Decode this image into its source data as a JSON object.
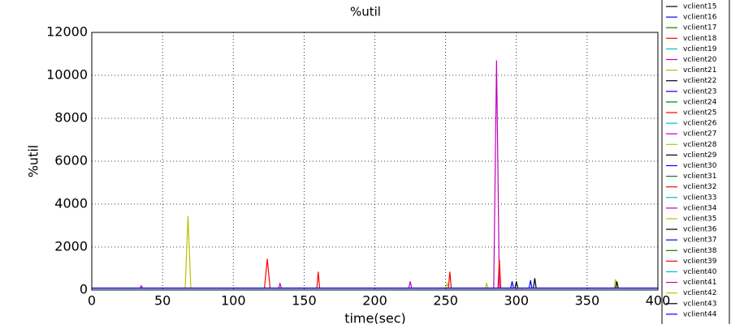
{
  "chart_data": {
    "type": "line",
    "title": "%util",
    "xlabel": "time(sec)",
    "ylabel": "%util",
    "xlim": [
      0,
      400
    ],
    "ylim": [
      0,
      12000
    ],
    "xticks": [
      0,
      50,
      100,
      150,
      200,
      250,
      300,
      350,
      400
    ],
    "yticks": [
      0,
      2000,
      4000,
      6000,
      8000,
      10000,
      12000
    ],
    "grid": true,
    "legend": "right",
    "series": [
      {
        "name": "vclient15",
        "color": "#000000",
        "x": [
          0,
          400
        ],
        "values": [
          80,
          80
        ]
      },
      {
        "name": "vclient16",
        "color": "#0000ff",
        "x": [
          0,
          400
        ],
        "values": [
          80,
          80
        ]
      },
      {
        "name": "vclient17",
        "color": "#008000",
        "x": [
          0,
          400
        ],
        "values": [
          80,
          80
        ]
      },
      {
        "name": "vclient18",
        "color": "#ff0000",
        "x": [
          0,
          122,
          124,
          126,
          400
        ],
        "values": [
          80,
          80,
          1450,
          80,
          80
        ]
      },
      {
        "name": "vclient19",
        "color": "#00bfbf",
        "x": [
          0,
          400
        ],
        "values": [
          80,
          80
        ]
      },
      {
        "name": "vclient20",
        "color": "#bf00bf",
        "x": [
          0,
          284,
          286,
          288,
          400
        ],
        "values": [
          80,
          80,
          10700,
          80,
          80
        ]
      },
      {
        "name": "vclient21",
        "color": "#bfbf00",
        "x": [
          0,
          66,
          68,
          70,
          400
        ],
        "values": [
          80,
          80,
          3450,
          80,
          80
        ]
      },
      {
        "name": "vclient22",
        "color": "#000000",
        "x": [
          0,
          312,
          313,
          314,
          400
        ],
        "values": [
          80,
          80,
          550,
          80,
          80
        ]
      },
      {
        "name": "vclient23",
        "color": "#0000ff",
        "x": [
          0,
          309,
          310,
          311,
          400
        ],
        "values": [
          80,
          80,
          450,
          80,
          80
        ]
      },
      {
        "name": "vclient24",
        "color": "#008000",
        "x": [
          0,
          400
        ],
        "values": [
          80,
          80
        ]
      },
      {
        "name": "vclient25",
        "color": "#ff0000",
        "x": [
          0,
          159,
          160,
          161,
          400
        ],
        "values": [
          80,
          80,
          850,
          80,
          80
        ]
      },
      {
        "name": "vclient26",
        "color": "#00bfbf",
        "x": [
          0,
          400
        ],
        "values": [
          80,
          80
        ]
      },
      {
        "name": "vclient27",
        "color": "#bf00bf",
        "x": [
          0,
          34,
          35,
          36,
          400
        ],
        "values": [
          80,
          80,
          200,
          80,
          80
        ]
      },
      {
        "name": "vclient28",
        "color": "#bfbf00",
        "x": [
          0,
          278,
          279,
          280,
          400
        ],
        "values": [
          80,
          80,
          300,
          80,
          80
        ]
      },
      {
        "name": "vclient29",
        "color": "#000000",
        "x": [
          0,
          299,
          300,
          301,
          400
        ],
        "values": [
          80,
          80,
          400,
          80,
          80
        ]
      },
      {
        "name": "vclient30",
        "color": "#0000ff",
        "x": [
          0,
          296,
          297,
          298,
          400
        ],
        "values": [
          80,
          80,
          400,
          80,
          80
        ]
      },
      {
        "name": "vclient31",
        "color": "#008000",
        "x": [
          0,
          400
        ],
        "values": [
          80,
          80
        ]
      },
      {
        "name": "vclient32",
        "color": "#ff0000",
        "x": [
          0,
          252,
          253,
          254,
          400
        ],
        "values": [
          80,
          80,
          850,
          80,
          80
        ]
      },
      {
        "name": "vclient33",
        "color": "#00bfbf",
        "x": [
          0,
          400
        ],
        "values": [
          80,
          80
        ]
      },
      {
        "name": "vclient34",
        "color": "#bf00bf",
        "x": [
          0,
          224,
          225,
          226,
          400
        ],
        "values": [
          80,
          80,
          400,
          80,
          80
        ]
      },
      {
        "name": "vclient35",
        "color": "#bfbf00",
        "x": [
          0,
          369,
          370,
          371,
          400
        ],
        "values": [
          80,
          80,
          500,
          80,
          80
        ]
      },
      {
        "name": "vclient36",
        "color": "#000000",
        "x": [
          0,
          370,
          371,
          372,
          400
        ],
        "values": [
          80,
          80,
          400,
          80,
          80
        ]
      },
      {
        "name": "vclient37",
        "color": "#0000ff",
        "x": [
          0,
          400
        ],
        "values": [
          80,
          80
        ]
      },
      {
        "name": "vclient38",
        "color": "#008000",
        "x": [
          0,
          400
        ],
        "values": [
          80,
          80
        ]
      },
      {
        "name": "vclient39",
        "color": "#ff0000",
        "x": [
          0,
          287,
          288,
          289,
          400
        ],
        "values": [
          80,
          80,
          1400,
          80,
          80
        ]
      },
      {
        "name": "vclient40",
        "color": "#00bfbf",
        "x": [
          0,
          400
        ],
        "values": [
          80,
          80
        ]
      },
      {
        "name": "vclient41",
        "color": "#bf00bf",
        "x": [
          0,
          132,
          133,
          134,
          400
        ],
        "values": [
          80,
          80,
          300,
          80,
          80
        ]
      },
      {
        "name": "vclient42",
        "color": "#bfbf00",
        "x": [
          0,
          250,
          251,
          252,
          400
        ],
        "values": [
          80,
          80,
          300,
          80,
          80
        ]
      },
      {
        "name": "vclient43",
        "color": "#000000",
        "x": [
          0,
          400
        ],
        "values": [
          80,
          80
        ]
      },
      {
        "name": "vclient44",
        "color": "#0000ff",
        "x": [
          0,
          400
        ],
        "values": [
          80,
          80
        ]
      }
    ]
  }
}
